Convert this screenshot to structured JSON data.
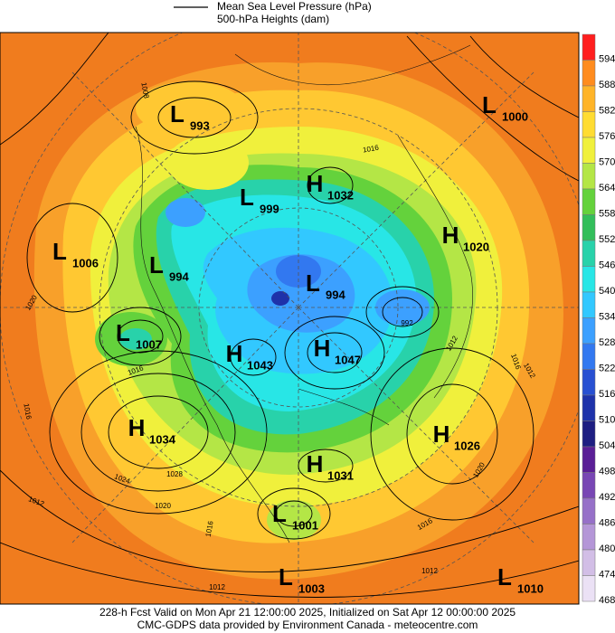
{
  "legend": {
    "pressure": "Mean Sea Level Pressure (hPa)",
    "heights": "500-hPa Heights (dam)"
  },
  "colorbar": [
    {
      "value": 594,
      "color": "#ff1e1e"
    },
    {
      "value": 588,
      "color": "#ff8c1e"
    },
    {
      "value": 582,
      "color": "#ffb428"
    },
    {
      "value": 576,
      "color": "#ffdc32"
    },
    {
      "value": 570,
      "color": "#f0f03c"
    },
    {
      "value": 564,
      "color": "#b4e646"
    },
    {
      "value": 558,
      "color": "#64d23c"
    },
    {
      "value": 552,
      "color": "#32be5a"
    },
    {
      "value": 546,
      "color": "#28d2aa"
    },
    {
      "value": 540,
      "color": "#28e6e6"
    },
    {
      "value": 534,
      "color": "#32c8ff"
    },
    {
      "value": 528,
      "color": "#3ca0ff"
    },
    {
      "value": 522,
      "color": "#3278f0"
    },
    {
      "value": 516,
      "color": "#2850d2"
    },
    {
      "value": 510,
      "color": "#1e32aa"
    },
    {
      "value": 504,
      "color": "#1e1e82"
    },
    {
      "value": 498,
      "color": "#5a1e96"
    },
    {
      "value": 492,
      "color": "#7846b4"
    },
    {
      "value": 486,
      "color": "#9670c8"
    },
    {
      "value": 480,
      "color": "#b496d7"
    },
    {
      "value": 474,
      "color": "#d2bee6"
    },
    {
      "value": 468,
      "color": "#ebe1f5"
    }
  ],
  "centers": [
    {
      "type": "L",
      "pressure": 993
    },
    {
      "type": "H",
      "pressure": 1032
    },
    {
      "type": "L",
      "pressure": 999
    },
    {
      "type": "L",
      "pressure": 1000
    },
    {
      "type": "H",
      "pressure": 1020
    },
    {
      "type": "L",
      "pressure": 1006
    },
    {
      "type": "L",
      "pressure": 994
    },
    {
      "type": "L",
      "pressure": 994
    },
    {
      "type": "L",
      "pressure": 1007
    },
    {
      "type": "H",
      "pressure": 1043
    },
    {
      "type": "H",
      "pressure": 1047
    },
    {
      "type": "H",
      "pressure": 1034
    },
    {
      "type": "H",
      "pressure": 1026
    },
    {
      "type": "H",
      "pressure": 1031
    },
    {
      "type": "L",
      "pressure": 1001
    },
    {
      "type": "L",
      "pressure": 1003
    },
    {
      "type": "L",
      "pressure": 1010
    }
  ],
  "contour_labels": [
    1008,
    1016,
    1012,
    1016,
    1020,
    1016,
    1016,
    1012,
    1024,
    1028,
    1020,
    1020,
    1016,
    1012,
    1012,
    1016,
    992,
    1012
  ],
  "footer": {
    "line1": "228-h Fcst Valid on Mon Apr 21 12:00:00 2025, Initialized on Sat Apr 12 00:00:00 2025",
    "line2": "CMC-GDPS data provided by Environment Canada - meteocentre.com"
  }
}
